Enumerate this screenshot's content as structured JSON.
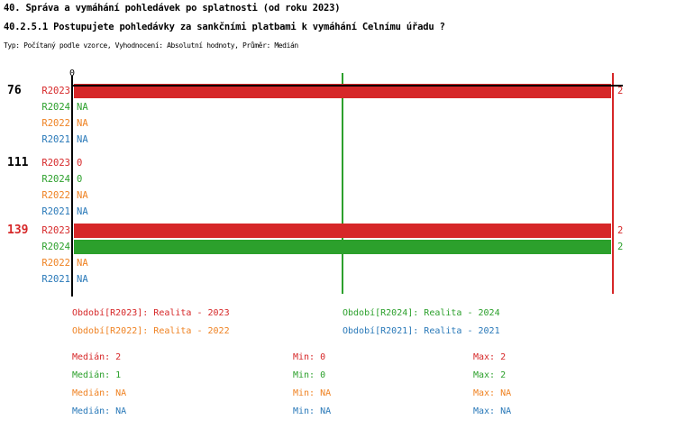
{
  "header": {
    "title": "40. Správa a vymáhání pohledávek po splatnosti (od roku 2023)",
    "subtitle": "40.2.5.1 Postupujete pohledávky za sankčními platbami k vymáhání Celnímu úřadu ?",
    "meta": "Typ: Počítaný podle vzorce, Vyhodnocení: Absolutní hodnoty, Průměr: Medián"
  },
  "colors": {
    "R2023": "#d62728",
    "R2024": "#2ca02c",
    "R2022": "#ef8222",
    "R2021": "#2878b8",
    "axis": "#000000"
  },
  "chart_data": {
    "type": "bar",
    "orientation": "horizontal",
    "x_axis": {
      "zero_label": "0",
      "min": 0,
      "max": 2,
      "grid": false
    },
    "series_order": [
      "R2023",
      "R2024",
      "R2022",
      "R2021"
    ],
    "series_meaning": {
      "R2023": "Realita - 2023",
      "R2024": "Realita - 2024",
      "R2022": "Realita - 2022",
      "R2021": "Realita - 2021"
    },
    "groups": [
      {
        "label": "76",
        "label_color": "#000000",
        "rows": [
          {
            "series": "R2023",
            "value": 2,
            "display": "2"
          },
          {
            "series": "R2024",
            "value": null,
            "display": "NA"
          },
          {
            "series": "R2022",
            "value": null,
            "display": "NA"
          },
          {
            "series": "R2021",
            "value": null,
            "display": "NA"
          }
        ]
      },
      {
        "label": "111",
        "label_color": "#000000",
        "rows": [
          {
            "series": "R2023",
            "value": 0,
            "display": "0"
          },
          {
            "series": "R2024",
            "value": 0,
            "display": "0"
          },
          {
            "series": "R2022",
            "value": null,
            "display": "NA"
          },
          {
            "series": "R2021",
            "value": null,
            "display": "NA"
          }
        ]
      },
      {
        "label": "139",
        "label_color": "#d62728",
        "rows": [
          {
            "series": "R2023",
            "value": 2,
            "display": "2"
          },
          {
            "series": "R2024",
            "value": 2,
            "display": "2"
          },
          {
            "series": "R2022",
            "value": null,
            "display": "NA"
          },
          {
            "series": "R2021",
            "value": null,
            "display": "NA"
          }
        ]
      }
    ],
    "median_lines": [
      {
        "series": "R2024",
        "value": 1,
        "color": "#2ca02c"
      },
      {
        "series": "R2023",
        "value": 2,
        "color": "#d62728"
      }
    ]
  },
  "legend": {
    "items": [
      {
        "series": "R2023",
        "label": "Období[R2023]: Realita - 2023",
        "color": "#d62728"
      },
      {
        "series": "R2024",
        "label": "Období[R2024]: Realita - 2024",
        "color": "#2ca02c"
      },
      {
        "series": "R2022",
        "label": "Období[R2022]: Realita - 2022",
        "color": "#ef8222"
      },
      {
        "series": "R2021",
        "label": "Období[R2021]: Realita - 2021",
        "color": "#2878b8"
      }
    ]
  },
  "stats": {
    "rows": [
      {
        "series": "R2023",
        "color": "#d62728",
        "median": "Medián: 2",
        "min": "Min: 0",
        "max": "Max: 2"
      },
      {
        "series": "R2024",
        "color": "#2ca02c",
        "median": "Medián: 1",
        "min": "Min: 0",
        "max": "Max: 2"
      },
      {
        "series": "R2022",
        "color": "#ef8222",
        "median": "Medián: NA",
        "min": "Min: NA",
        "max": "Max: NA"
      },
      {
        "series": "R2021",
        "color": "#2878b8",
        "median": "Medián: NA",
        "min": "Min: NA",
        "max": "Max: NA"
      }
    ]
  }
}
